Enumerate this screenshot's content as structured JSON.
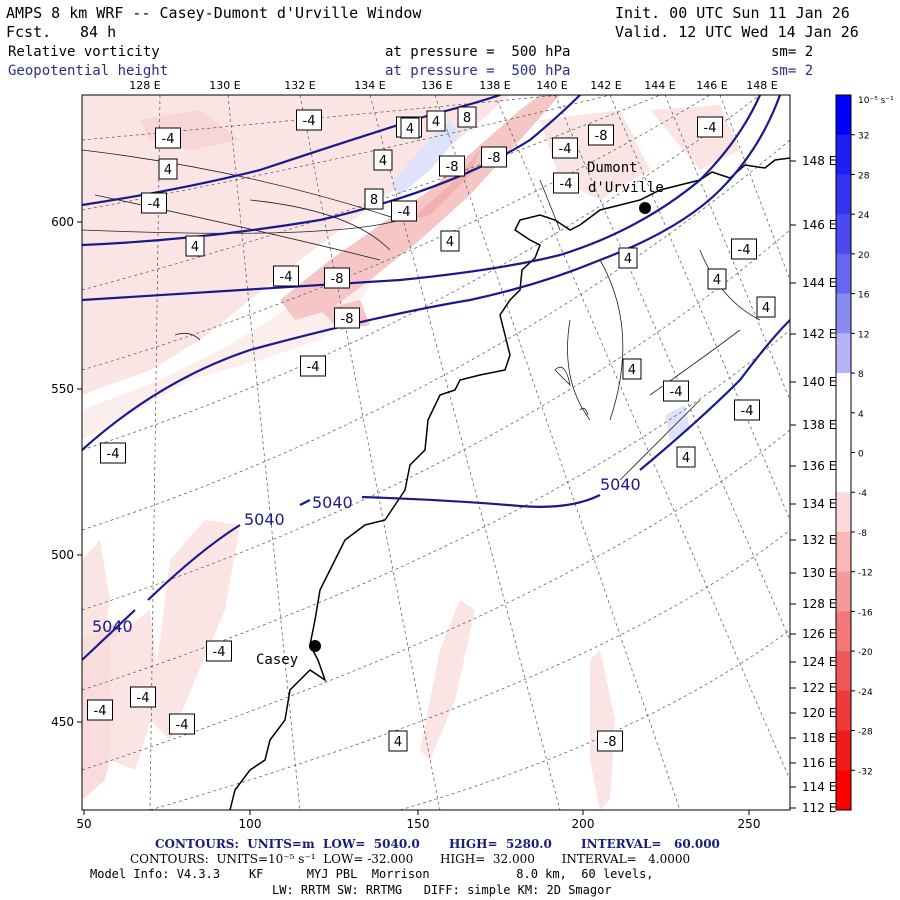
{
  "header": {
    "title": "AMPS 8 km WRF -- Casey-Dumont d'Urville Window",
    "fcst_label": "Fcst.",
    "fcst_value": "84 h",
    "init": "Init. 00 UTC Sun 11 Jan 26",
    "valid": "Valid. 12 UTC Wed 14 Jan 26",
    "field1_name": "Relative vorticity",
    "field1_level": "at pressure =  500 hPa",
    "field1_sm": "sm= 2",
    "field2_name": "Geopotential height",
    "field2_level": "at pressure =  500 hPa",
    "field2_sm": "sm= 2"
  },
  "map": {
    "top_lon_labels": [
      "128 E",
      "130 E",
      "132 E",
      "134 E",
      "136 E",
      "138 E",
      "140 E",
      "142 E",
      "144 E",
      "146 E",
      "148 E"
    ],
    "right_lon_labels": [
      "148 E",
      "146 E",
      "144 E",
      "142 E",
      "140 E",
      "138 E",
      "136 E",
      "134 E",
      "132 E",
      "130 E",
      "128 E",
      "126 E",
      "124 E",
      "122 E",
      "120 E",
      "118 E",
      "116 E",
      "114 E",
      "112 E"
    ],
    "x_ticks": [
      "50",
      "100",
      "150",
      "200",
      "250"
    ],
    "y_ticks": [
      "600",
      "550",
      "500",
      "450"
    ],
    "places": [
      {
        "name": "Casey"
      },
      {
        "name": "Dumont"
      },
      {
        "name": "d'Urville"
      }
    ],
    "height_contour_labels": [
      "5040",
      "5040",
      "5040",
      "5040"
    ],
    "vorticity_labels": [
      "-4",
      "-8",
      "-4",
      "4",
      "8",
      "4",
      "-8",
      "4",
      "-4",
      "-8",
      "4",
      "-8",
      "8",
      "-4",
      "-4",
      "4",
      "-4",
      "-8",
      "-8",
      "-4",
      "-4",
      "4",
      "-4",
      "-4",
      "4",
      "4",
      "4",
      "4",
      "-4",
      "4",
      "4",
      "-4",
      "-8",
      "-4",
      "-4",
      "-4",
      "-4",
      "-4"
    ],
    "colors": {
      "geopotential_contour": "#1a1a8c",
      "coast": "#000000",
      "negative_shade_light": "#fbe4e4",
      "negative_shade_mid": "#f6c6c6",
      "positive_shade_light": "#dfe2fb"
    }
  },
  "colorbar": {
    "unit_label": "10⁻⁵ s⁻¹",
    "labels": [
      "32",
      "28",
      "24",
      "20",
      "16",
      "12",
      "8",
      "4",
      "0",
      "-4",
      "-8",
      "-12",
      "-16",
      "-20",
      "-24",
      "-28",
      "-32"
    ],
    "colors": [
      "#0000ff",
      "#1e1ef5",
      "#3434f0",
      "#4a4af0",
      "#6666f0",
      "#8a8af3",
      "#b4b4f8",
      "#ffffff",
      "#ffffff",
      "#ffffff",
      "#fbdada",
      "#f8b8b8",
      "#f59a9a",
      "#f27878",
      "#f05858",
      "#ef3a3a",
      "#ee1c1c",
      "#ff0000"
    ]
  },
  "footer": {
    "line1": "CONTOURS:  UNITS=m  LOW=  5040.0       HIGH=  5280.0       INTERVAL=   60.000",
    "line2": "CONTOURS:  UNITS=10⁻⁵ s⁻¹  LOW= -32.000       HIGH=  32.000       INTERVAL=   4.0000",
    "line3": "Model Info: V4.3.3    KF      MYJ PBL  Morrison            8.0 km,  60 levels,",
    "line4": "LW: RRTM SW: RRTMG   DIFF: simple KM: 2D Smagor"
  }
}
